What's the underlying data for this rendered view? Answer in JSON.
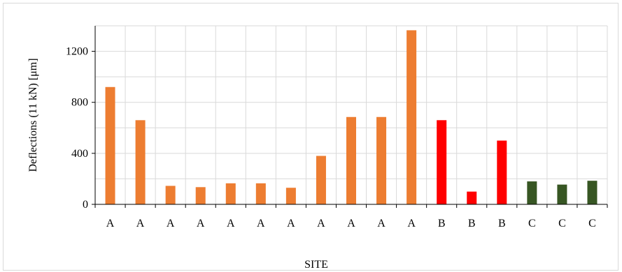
{
  "chart_data": {
    "type": "bar",
    "title": "",
    "xlabel": "SITE",
    "ylabel": "Deflections (11 kN)  [μm]",
    "ylim": [
      0,
      1400
    ],
    "yticks": [
      0,
      400,
      800,
      1200
    ],
    "grid": true,
    "categories": [
      "A",
      "A",
      "A",
      "A",
      "A",
      "A",
      "A",
      "A",
      "A",
      "A",
      "A",
      "B",
      "B",
      "B",
      "C",
      "C",
      "C"
    ],
    "values": [
      920,
      660,
      145,
      135,
      165,
      165,
      130,
      380,
      685,
      685,
      1365,
      660,
      100,
      500,
      180,
      155,
      185
    ],
    "colors": {
      "A": "#ED7D31",
      "B": "#FF0000",
      "C": "#375623"
    },
    "grid_color": "#d9d9d9",
    "axis_color": "#000000"
  }
}
